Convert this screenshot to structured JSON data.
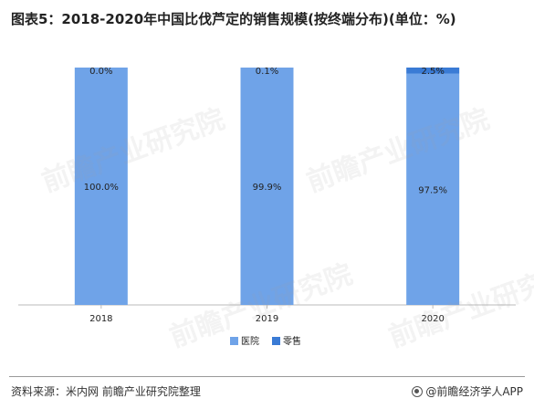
{
  "title": "图表5：2018-2020年中国比伐芦定的销售规模(按终端分布)(单位：%)",
  "source": "资料来源：米内网 前瞻产业研究院整理",
  "brand": "@前瞻经济学人APP",
  "watermark": "前瞻产业研究院",
  "colors": {
    "hospital": "#6fa3e8",
    "retail": "#3a7bd5",
    "axis": "#bbbbbb"
  },
  "chart_data": {
    "type": "bar",
    "stacked": true,
    "categories": [
      "2018",
      "2019",
      "2020"
    ],
    "series": [
      {
        "name": "医院",
        "values": [
          100.0,
          99.9,
          97.5
        ],
        "labels": [
          "100.0%",
          "99.9%",
          "97.5%"
        ]
      },
      {
        "name": "零售",
        "values": [
          0.0,
          0.1,
          2.5
        ],
        "labels": [
          "0.0%",
          "0.1%",
          "2.5%"
        ]
      }
    ],
    "ylim": [
      0,
      100
    ],
    "legend_position": "bottom"
  }
}
